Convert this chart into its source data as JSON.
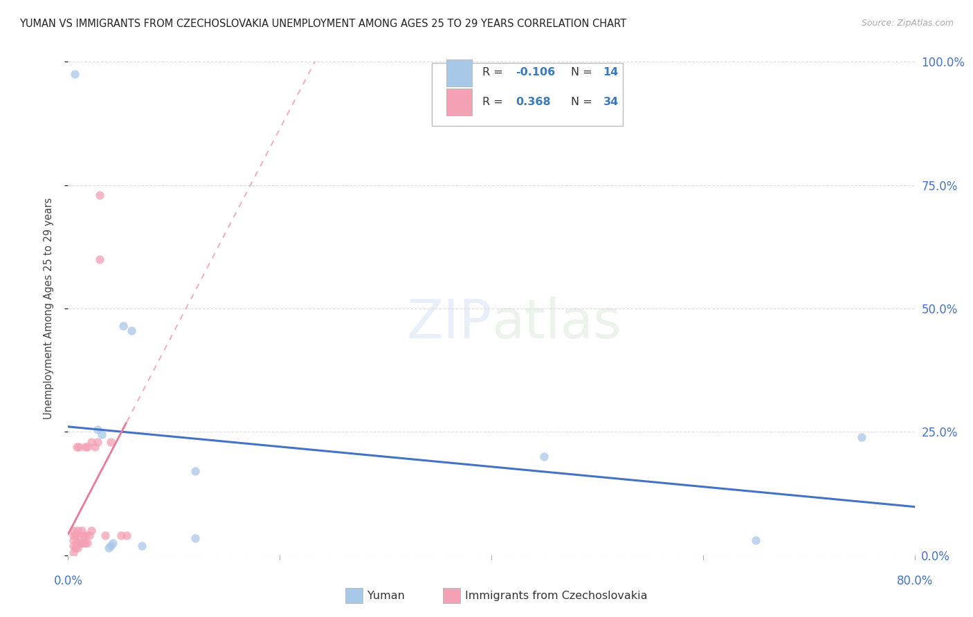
{
  "title": "YUMAN VS IMMIGRANTS FROM CZECHOSLOVAKIA UNEMPLOYMENT AMONG AGES 25 TO 29 YEARS CORRELATION CHART",
  "source": "Source: ZipAtlas.com",
  "ylabel": "Unemployment Among Ages 25 to 29 years",
  "xlim": [
    0.0,
    0.8
  ],
  "ylim": [
    0.0,
    1.0
  ],
  "yticks_right": [
    0.0,
    0.25,
    0.5,
    0.75,
    1.0
  ],
  "ytick_labels_right": [
    "0.0%",
    "25.0%",
    "50.0%",
    "75.0%",
    "100.0%"
  ],
  "blue_color": "#a8c8e8",
  "pink_color": "#f4a0b5",
  "blue_line_color": "#4472c4",
  "pink_line_color": "#e87a9a",
  "legend_r_blue": "-0.106",
  "legend_n_blue": "14",
  "legend_r_pink": "0.368",
  "legend_n_pink": "34",
  "yuman_x": [
    0.006,
    0.028,
    0.032,
    0.038,
    0.04,
    0.042,
    0.052,
    0.06,
    0.07,
    0.12,
    0.12,
    0.45,
    0.65,
    0.75
  ],
  "yuman_y": [
    0.975,
    0.255,
    0.245,
    0.015,
    0.02,
    0.025,
    0.465,
    0.455,
    0.02,
    0.17,
    0.035,
    0.2,
    0.03,
    0.24
  ],
  "czech_x": [
    0.005,
    0.005,
    0.005,
    0.005,
    0.005,
    0.007,
    0.007,
    0.008,
    0.008,
    0.009,
    0.009,
    0.01,
    0.01,
    0.01,
    0.012,
    0.013,
    0.014,
    0.015,
    0.016,
    0.016,
    0.017,
    0.018,
    0.018,
    0.02,
    0.022,
    0.022,
    0.025,
    0.028,
    0.03,
    0.03,
    0.035,
    0.04,
    0.05,
    0.055
  ],
  "czech_y": [
    0.005,
    0.02,
    0.03,
    0.04,
    0.05,
    0.015,
    0.04,
    0.025,
    0.22,
    0.015,
    0.05,
    0.025,
    0.04,
    0.22,
    0.025,
    0.05,
    0.025,
    0.04,
    0.025,
    0.22,
    0.04,
    0.025,
    0.22,
    0.04,
    0.23,
    0.05,
    0.22,
    0.23,
    0.6,
    0.73,
    0.04,
    0.23,
    0.04,
    0.04
  ],
  "background_color": "#ffffff",
  "grid_color": "#dddddd"
}
